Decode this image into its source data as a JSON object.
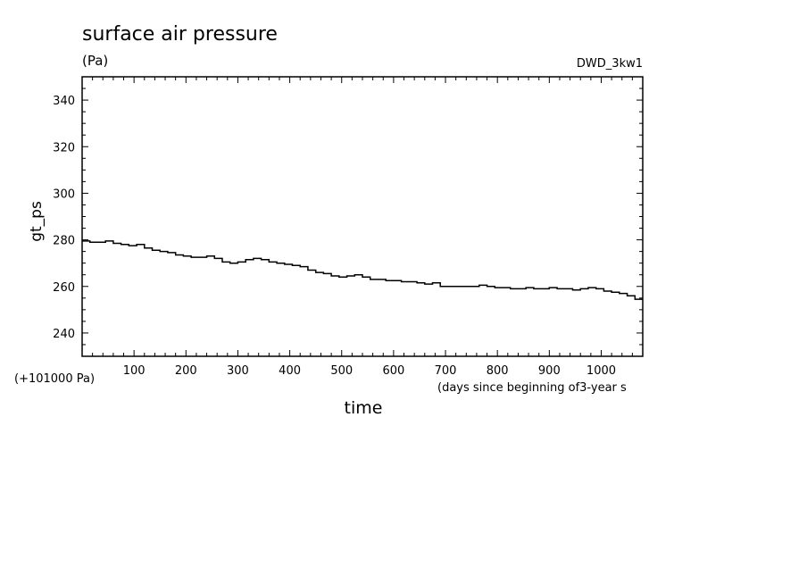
{
  "chart_data": {
    "type": "line",
    "title": "surface air pressure",
    "units": "(Pa)",
    "experiment": "DWD_3kw1",
    "xlabel": "time",
    "xunits": "(days since beginning of3-year s",
    "ylabel": "gt_ps",
    "yoffset_label": "(+101000 Pa)",
    "xlim": [
      0,
      1080
    ],
    "ylim": [
      230,
      350
    ],
    "xticks": [
      100,
      200,
      300,
      400,
      500,
      600,
      700,
      800,
      900,
      1000
    ],
    "yticks": [
      240,
      260,
      280,
      300,
      320,
      340
    ],
    "grid": false,
    "series": [
      {
        "color": "#000000",
        "x": [
          0,
          15,
          30,
          45,
          60,
          75,
          90,
          105,
          120,
          135,
          150,
          165,
          180,
          195,
          210,
          225,
          240,
          255,
          270,
          285,
          300,
          315,
          330,
          345,
          360,
          375,
          390,
          405,
          420,
          435,
          450,
          465,
          480,
          495,
          510,
          525,
          540,
          555,
          570,
          585,
          600,
          615,
          630,
          645,
          660,
          675,
          690,
          705,
          720,
          735,
          750,
          765,
          780,
          795,
          810,
          825,
          840,
          855,
          870,
          885,
          900,
          915,
          930,
          945,
          960,
          975,
          990,
          1005,
          1020,
          1035,
          1050,
          1065,
          1080
        ],
        "y": [
          279.5,
          279,
          279,
          279.5,
          278.5,
          278,
          277.5,
          278,
          276.5,
          275.5,
          275,
          274.5,
          273.5,
          273,
          272.5,
          272.5,
          273,
          272,
          270.5,
          270,
          270.5,
          271.5,
          272,
          271.5,
          270.5,
          270,
          269.5,
          269,
          268.5,
          267,
          266,
          265.5,
          264.5,
          264,
          264.5,
          265,
          264,
          263,
          263,
          262.5,
          262.5,
          262,
          262,
          261.5,
          261,
          261.5,
          260,
          260,
          260,
          260,
          260,
          260.5,
          260,
          259.5,
          259.5,
          259,
          259,
          259.5,
          259,
          259,
          259.5,
          259,
          259,
          258.5,
          259,
          259.5,
          259,
          258,
          257.5,
          257,
          256,
          254.5,
          254.5
        ]
      }
    ]
  }
}
